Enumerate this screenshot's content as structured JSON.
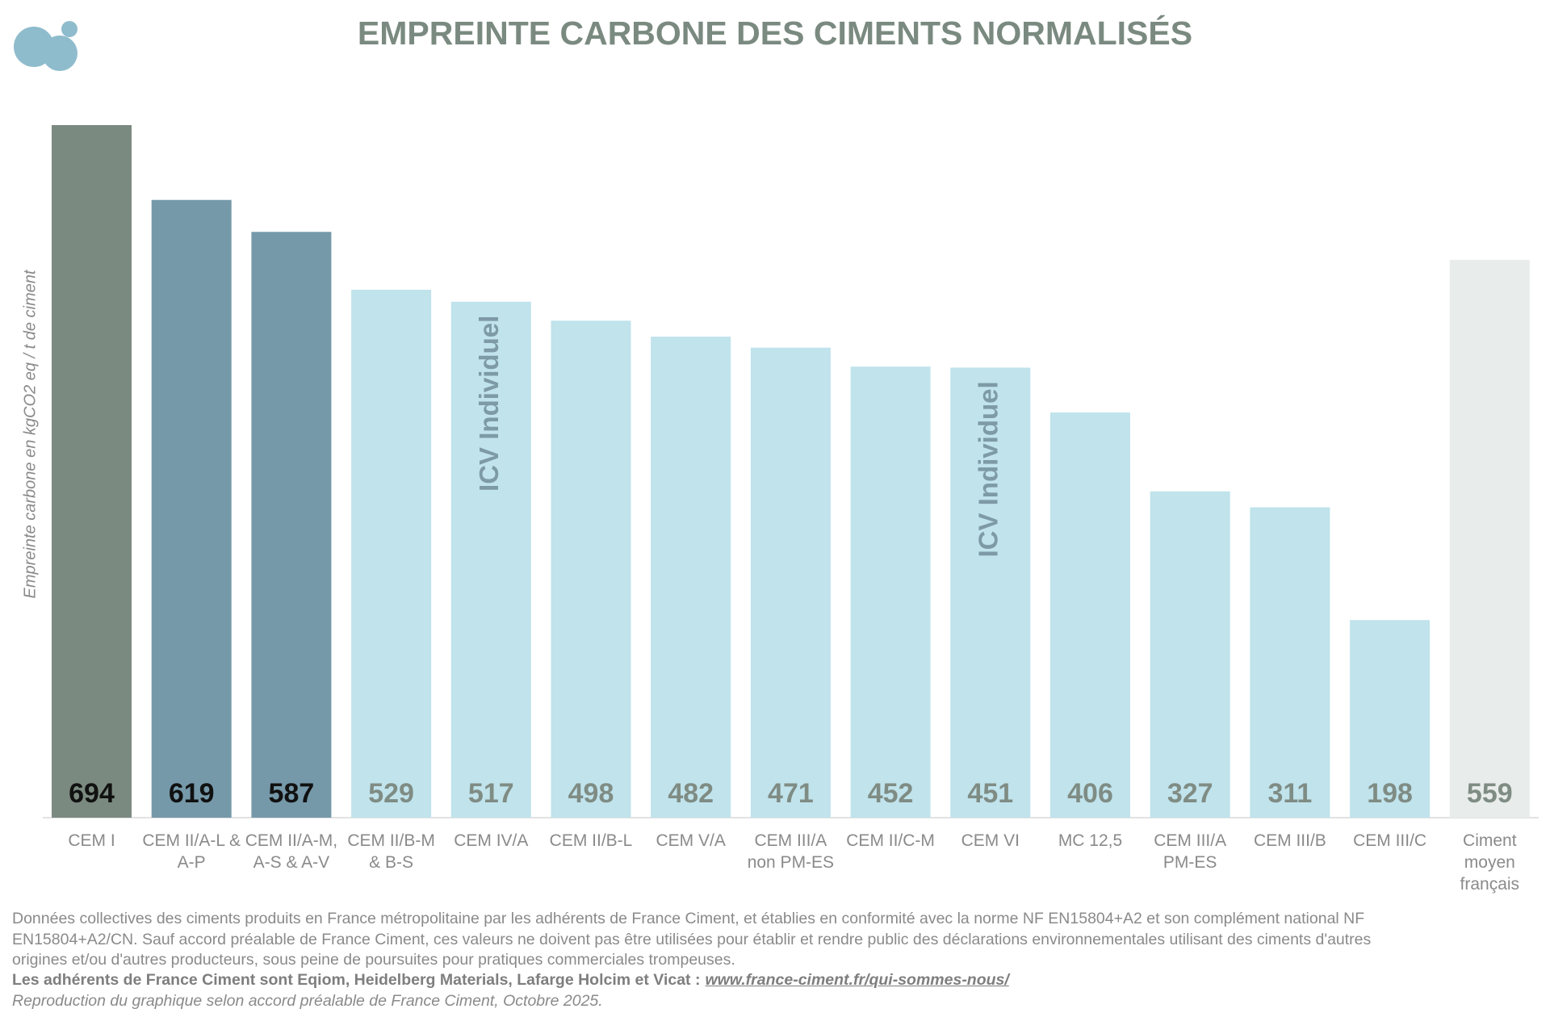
{
  "chart_data": {
    "type": "bar",
    "title": "EMPREINTE CARBONE DES CIMENTS NORMALISÉS",
    "y_label": "Empreinte carbone en kgCO2 eq / t de ciment",
    "categories": [
      "CEM I",
      "CEM II/A-L & A-P",
      "CEM II/A-M, A-S & A-V",
      "CEM II/B-M & B-S",
      "CEM IV/A",
      "CEM II/B-L",
      "CEM V/A",
      "CEM III/A non PM-ES",
      "CEM II/C-M",
      "CEM VI",
      "MC 12,5",
      "CEM III/A PM-ES",
      "CEM III/B",
      "CEM III/C",
      "Ciment moyen français"
    ],
    "values": [
      694,
      619,
      587,
      529,
      517,
      498,
      482,
      471,
      452,
      451,
      406,
      327,
      311,
      198,
      559
    ],
    "colors": [
      "#7b8a80",
      "#7599a9",
      "#7599a9",
      "#c0e3ec",
      "#c0e3ec",
      "#c0e3ec",
      "#c0e3ec",
      "#c0e3ec",
      "#c0e3ec",
      "#c0e3ec",
      "#c0e3ec",
      "#c0e3ec",
      "#c0e3ec",
      "#c0e3ec",
      "#e8ecea"
    ],
    "label_colors": [
      "#111111",
      "#111111",
      "#111111",
      "#7f8c84",
      "#7f8c84",
      "#7f8c84",
      "#7f8c84",
      "#7f8c84",
      "#7f8c84",
      "#7f8c84",
      "#7f8c84",
      "#7f8c84",
      "#7f8c84",
      "#7f8c84",
      "#7f8c84"
    ],
    "annotations": [
      {
        "text": "ICV Individuel",
        "category": "CEM IV/A"
      },
      {
        "text": "ICV Individuel",
        "category": "CEM VI"
      }
    ],
    "footnote": {
      "text": "Données collectives des ciments produits en France métropolitaine par les adhérents de France Ciment, et établies en conformité avec la norme NF EN15804+A2 et son complément national NF EN15804+A2/CN. Sauf accord préalable de France Ciment, ces valeurs ne doivent pas être utilisées pour établir et rendre public des déclarations environnementales utilisant des ciments d'autres origines et/ou d'autres producteurs, sous peine de poursuites pour pratiques commerciales trompeuses.",
      "members": "Les adhérents de France Ciment sont Eqiom, Heidelberg Materials, Lafarge Holcim et Vicat :",
      "link": "www.france-ciment.fr/qui-sommes-nous/",
      "reproduction": "Reproduction du graphique selon accord préalable de France Ciment, Octobre 2025."
    }
  }
}
